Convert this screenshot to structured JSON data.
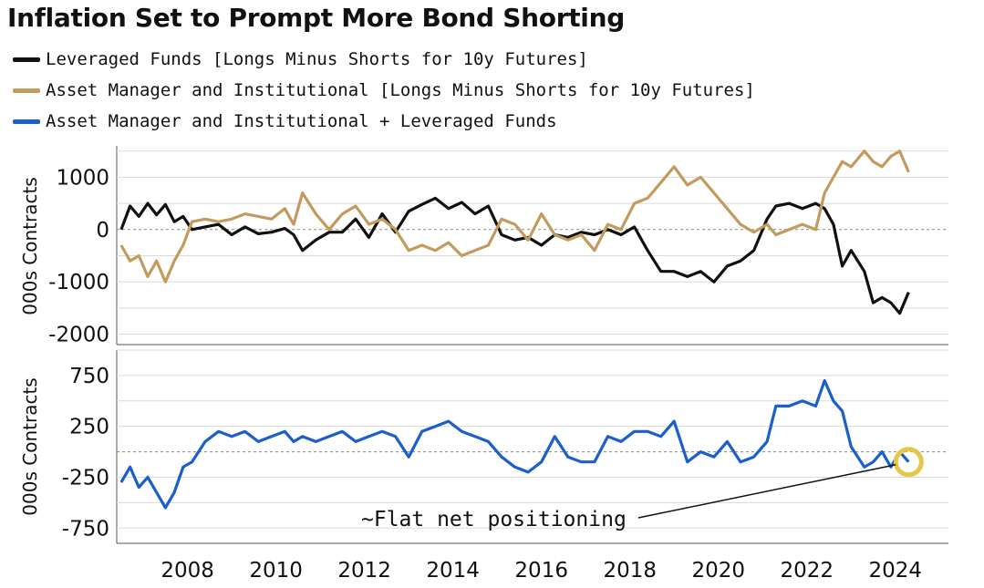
{
  "title": "Inflation Set to Prompt More Bond Shorting",
  "legend": [
    {
      "label": "Leveraged Funds [Longs Minus Shorts for 10y Futures]",
      "color": "#111111"
    },
    {
      "label": "Asset Manager and Institutional [Longs Minus Shorts for 10y Futures]",
      "color": "#c49a5e"
    },
    {
      "label": "Asset Manager and Institutional + Leveraged Funds",
      "color": "#1a5fcc"
    }
  ],
  "x_ticks": [
    "2008",
    "2010",
    "2012",
    "2014",
    "2016",
    "2018",
    "2020",
    "2022",
    "2024"
  ],
  "annotation": "~Flat net positioning",
  "chart_data": [
    {
      "type": "line",
      "ylabel": "000s Contracts",
      "ylim": [
        -2200,
        1600
      ],
      "yticks": [
        1000,
        0,
        -1000,
        -2000
      ],
      "ytick_labels": [
        "1000",
        "0",
        "-1000",
        "-2000"
      ],
      "xlim": [
        2006.4,
        2025.2
      ],
      "grid": true,
      "series": [
        {
          "name": "Leveraged Funds [Longs Minus Shorts for 10y Futures]",
          "color": "#111111",
          "x": [
            2006.5,
            2006.7,
            2006.9,
            2007.1,
            2007.3,
            2007.5,
            2007.7,
            2007.9,
            2008.1,
            2008.4,
            2008.7,
            2009.0,
            2009.3,
            2009.6,
            2009.9,
            2010.2,
            2010.4,
            2010.6,
            2010.9,
            2011.2,
            2011.5,
            2011.8,
            2012.1,
            2012.4,
            2012.7,
            2013.0,
            2013.3,
            2013.6,
            2013.9,
            2014.2,
            2014.5,
            2014.8,
            2015.1,
            2015.4,
            2015.7,
            2016.0,
            2016.3,
            2016.6,
            2016.9,
            2017.2,
            2017.5,
            2017.8,
            2018.1,
            2018.4,
            2018.7,
            2019.0,
            2019.3,
            2019.6,
            2019.9,
            2020.2,
            2020.5,
            2020.8,
            2021.1,
            2021.3,
            2021.6,
            2021.9,
            2022.2,
            2022.4,
            2022.6,
            2022.8,
            2023.0,
            2023.3,
            2023.5,
            2023.7,
            2023.9,
            2024.1,
            2024.3
          ],
          "y": [
            0,
            450,
            250,
            500,
            280,
            480,
            150,
            250,
            0,
            50,
            100,
            -100,
            50,
            -80,
            -50,
            20,
            -100,
            -400,
            -200,
            -50,
            -50,
            200,
            -150,
            300,
            -50,
            350,
            480,
            600,
            400,
            520,
            300,
            450,
            -100,
            -200,
            -150,
            -300,
            -100,
            -150,
            -50,
            -100,
            0,
            -100,
            50,
            -400,
            -800,
            -800,
            -900,
            -800,
            -1000,
            -700,
            -600,
            -400,
            200,
            450,
            500,
            400,
            500,
            400,
            100,
            -700,
            -400,
            -800,
            -1400,
            -1300,
            -1400,
            -1600,
            -1200
          ]
        },
        {
          "name": "Asset Manager and Institutional [Longs Minus Shorts for 10y Futures]",
          "color": "#c49a5e",
          "x": [
            2006.5,
            2006.7,
            2006.9,
            2007.1,
            2007.3,
            2007.5,
            2007.7,
            2007.9,
            2008.1,
            2008.4,
            2008.7,
            2009.0,
            2009.3,
            2009.6,
            2009.9,
            2010.2,
            2010.4,
            2010.6,
            2010.9,
            2011.2,
            2011.5,
            2011.8,
            2012.1,
            2012.4,
            2012.7,
            2013.0,
            2013.3,
            2013.6,
            2013.9,
            2014.2,
            2014.5,
            2014.8,
            2015.1,
            2015.4,
            2015.7,
            2016.0,
            2016.3,
            2016.6,
            2016.9,
            2017.2,
            2017.5,
            2017.8,
            2018.1,
            2018.4,
            2018.7,
            2019.0,
            2019.3,
            2019.6,
            2019.9,
            2020.2,
            2020.5,
            2020.8,
            2021.1,
            2021.3,
            2021.6,
            2021.9,
            2022.2,
            2022.4,
            2022.6,
            2022.8,
            2023.0,
            2023.3,
            2023.5,
            2023.7,
            2023.9,
            2024.1,
            2024.3
          ],
          "y": [
            -300,
            -600,
            -500,
            -900,
            -600,
            -1000,
            -600,
            -300,
            150,
            200,
            150,
            200,
            300,
            250,
            200,
            400,
            100,
            700,
            300,
            0,
            300,
            450,
            100,
            200,
            0,
            -400,
            -300,
            -400,
            -250,
            -500,
            -400,
            -300,
            200,
            100,
            -200,
            300,
            -100,
            -200,
            -100,
            -400,
            100,
            0,
            500,
            600,
            900,
            1200,
            850,
            1000,
            700,
            400,
            100,
            -50,
            100,
            -100,
            0,
            100,
            0,
            700,
            1000,
            1300,
            1200,
            1500,
            1300,
            1200,
            1400,
            1500,
            1100
          ]
        }
      ]
    },
    {
      "type": "line",
      "ylabel": "000s Contracts",
      "ylim": [
        -900,
        1000
      ],
      "yticks": [
        750,
        250,
        -250,
        -750
      ],
      "ytick_labels": [
        "750",
        "250",
        "-250",
        "-750"
      ],
      "xlim": [
        2006.4,
        2025.2
      ],
      "grid": true,
      "series": [
        {
          "name": "Asset Manager and Institutional + Leveraged Funds",
          "color": "#1a5fcc",
          "x": [
            2006.5,
            2006.7,
            2006.9,
            2007.1,
            2007.3,
            2007.5,
            2007.7,
            2007.9,
            2008.1,
            2008.4,
            2008.7,
            2009.0,
            2009.3,
            2009.6,
            2009.9,
            2010.2,
            2010.4,
            2010.6,
            2010.9,
            2011.2,
            2011.5,
            2011.8,
            2012.1,
            2012.4,
            2012.7,
            2013.0,
            2013.3,
            2013.6,
            2013.9,
            2014.2,
            2014.5,
            2014.8,
            2015.1,
            2015.4,
            2015.7,
            2016.0,
            2016.3,
            2016.6,
            2016.9,
            2017.2,
            2017.5,
            2017.8,
            2018.1,
            2018.4,
            2018.7,
            2019.0,
            2019.3,
            2019.6,
            2019.9,
            2020.2,
            2020.5,
            2020.8,
            2021.1,
            2021.3,
            2021.6,
            2021.9,
            2022.2,
            2022.4,
            2022.6,
            2022.8,
            2023.0,
            2023.3,
            2023.5,
            2023.7,
            2023.9,
            2024.1,
            2024.3
          ],
          "y": [
            -300,
            -150,
            -350,
            -250,
            -400,
            -550,
            -400,
            -150,
            -100,
            100,
            200,
            150,
            200,
            100,
            150,
            200,
            100,
            150,
            100,
            150,
            200,
            100,
            150,
            200,
            150,
            -50,
            200,
            250,
            300,
            200,
            150,
            100,
            -50,
            -150,
            -200,
            -100,
            150,
            -50,
            -100,
            -100,
            150,
            100,
            200,
            200,
            150,
            300,
            -100,
            0,
            -50,
            100,
            -100,
            -50,
            100,
            450,
            450,
            500,
            450,
            700,
            500,
            400,
            50,
            -150,
            -100,
            0,
            -150,
            0,
            -100
          ]
        }
      ]
    }
  ]
}
